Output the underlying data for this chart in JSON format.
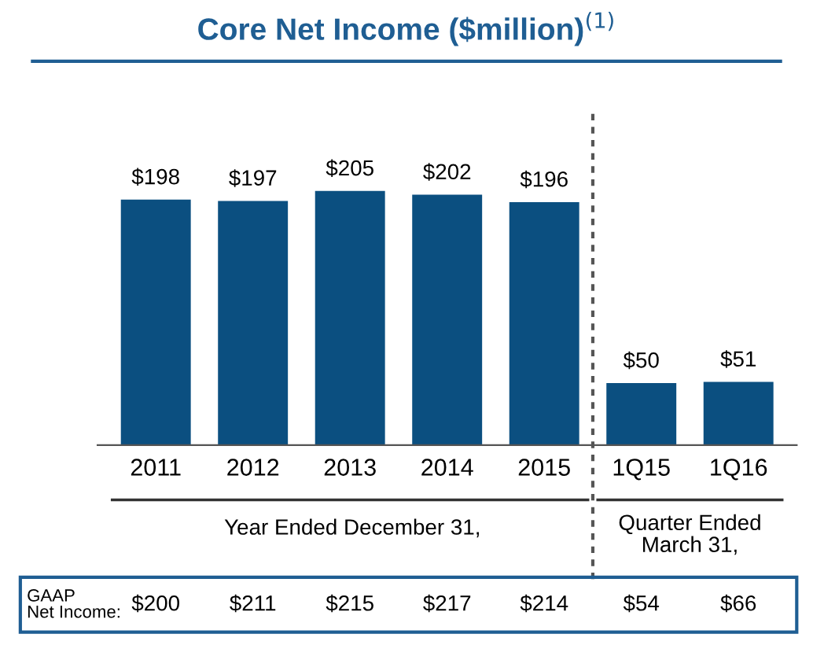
{
  "chart_data": {
    "type": "bar",
    "title": "Core Net Income ($million)$^{(1)}$",
    "categories": [
      "2011",
      "2012",
      "2013",
      "2014",
      "2015",
      "1Q15",
      "1Q16"
    ],
    "values": [
      198,
      197,
      205,
      202,
      196,
      50,
      51
    ],
    "value_labels": [
      "$198",
      "$197",
      "$205",
      "$202",
      "$196",
      "$50",
      "$51"
    ],
    "color": "#0b4f80",
    "annotations": [
      "Year Ended December 31,",
      "Quarter Ended\nMarch 31,",
      "GAAP\nNet Income:",
      "$200",
      "$211",
      "$215",
      "$217",
      "$214",
      "$54",
      "$66"
    ],
    "grid": false
  }
}
